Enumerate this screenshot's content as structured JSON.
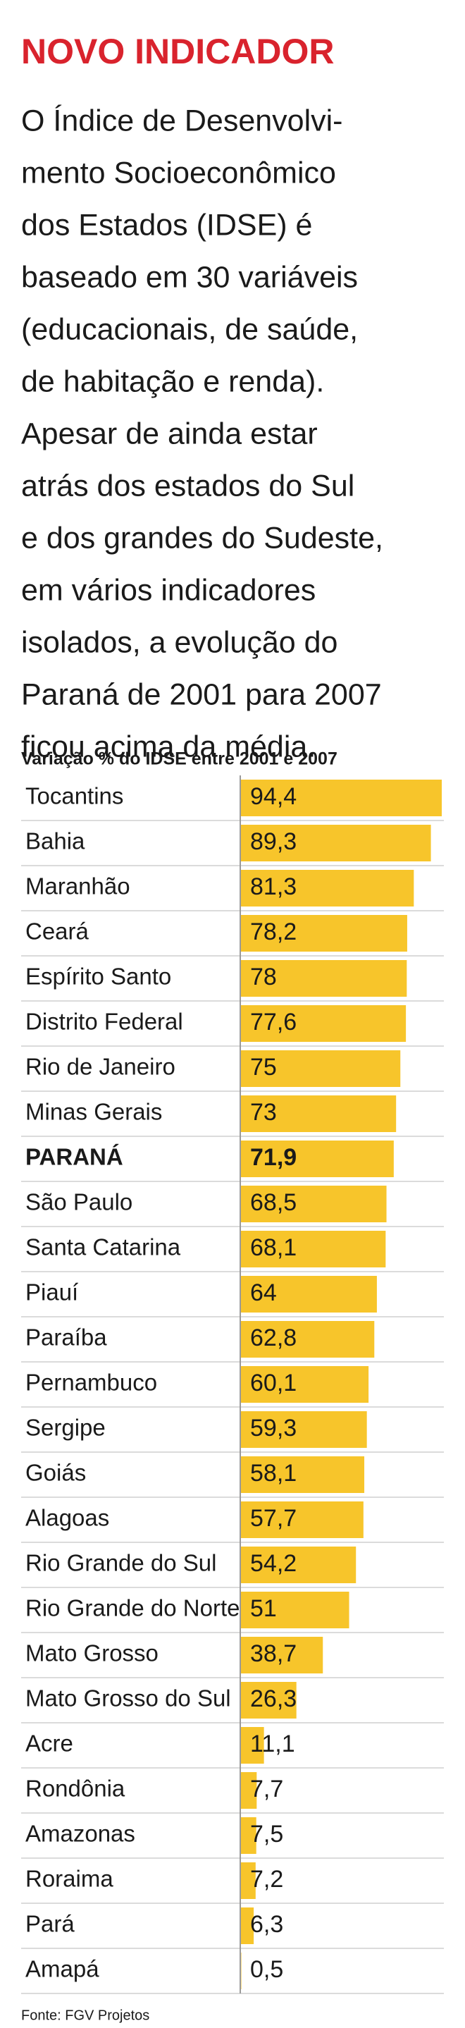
{
  "header": {
    "title": "NOVO INDICADOR",
    "lines": [
      "O Índice de Desenvolvi-",
      "mento Socioeconômico",
      "dos Estados (IDSE) é",
      "baseado em 30 variáveis",
      "(educacionais, de saúde,",
      "de habitação e renda).",
      "Apesar de ainda estar",
      "atrás dos estados do Sul",
      "e dos grandes do Sudeste,",
      "em vários indicadores",
      "isolados, a evolução do",
      "Paraná de 2001 para 2007",
      "ficou acima da média."
    ]
  },
  "chart_data": {
    "type": "bar",
    "orientation": "horizontal",
    "subtitle": "Variação % do IDSE entre 2001 e 2007",
    "categories": [
      "Tocantins",
      "Bahia",
      "Maranhão",
      "Ceará",
      "Espírito Santo",
      "Distrito Federal",
      "Rio de Janeiro",
      "Minas Gerais",
      "PARANÁ",
      "São Paulo",
      "Santa Catarina",
      "Piauí",
      "Paraíba",
      "Pernambuco",
      "Sergipe",
      "Goiás",
      "Alagoas",
      "Rio Grande do Sul",
      "Rio Grande do Norte",
      "Mato Grosso",
      "Mato Grosso do Sul",
      "Acre",
      "Rondônia",
      "Amazonas",
      "Roraima",
      "Pará",
      "Amapá"
    ],
    "values": [
      94.4,
      89.3,
      81.3,
      78.2,
      78,
      77.6,
      75,
      73,
      71.9,
      68.5,
      68.1,
      64,
      62.8,
      60.1,
      59.3,
      58.1,
      57.7,
      54.2,
      51,
      38.7,
      26.3,
      11.1,
      7.7,
      7.5,
      7.2,
      6.3,
      0.5
    ],
    "value_labels": [
      "94,4",
      "89,3",
      "81,3",
      "78,2",
      "78",
      "77,6",
      "75",
      "73",
      "71,9",
      "68,5",
      "68,1",
      "64",
      "62,8",
      "60,1",
      "59,3",
      "58,1",
      "57,7",
      "54,2",
      "51",
      "38,7",
      "26,3",
      "11,1",
      "7,7",
      "7,5",
      "7,2",
      "6,3",
      "0,5"
    ],
    "color": "#f7c52b",
    "highlight_index": 8,
    "source": "Fonte: FGV Projetos"
  }
}
